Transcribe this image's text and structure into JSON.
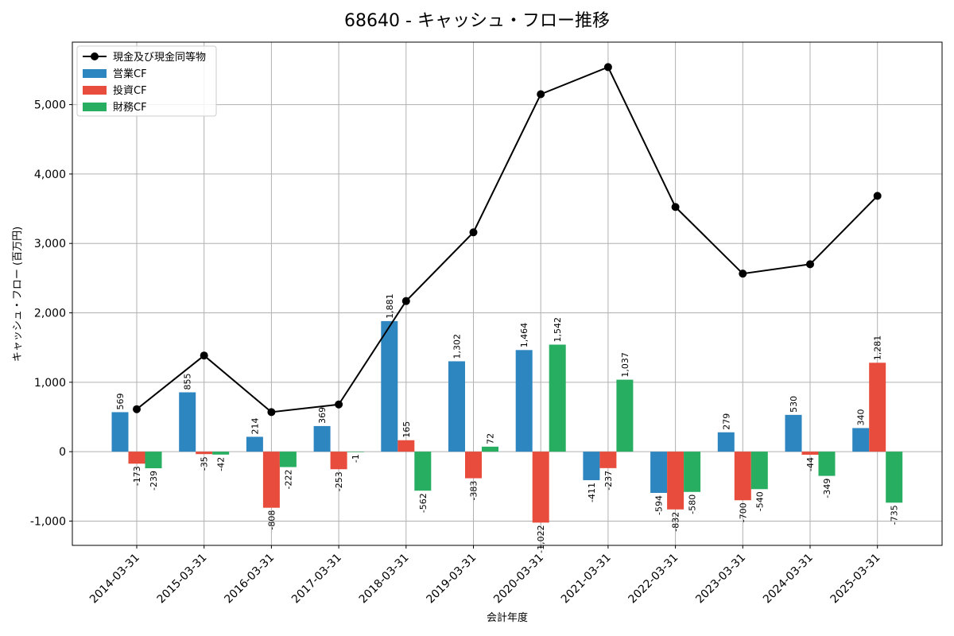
{
  "chart_data": {
    "type": "bar",
    "title": "68640 - キャッシュ・フロー推移",
    "xlabel": "会計年度",
    "ylabel": "キャッシュ・フロー (百万円)",
    "ylim": [
      -1350,
      5900
    ],
    "yticks": [
      -1000,
      0,
      1000,
      2000,
      3000,
      4000,
      5000
    ],
    "ytick_labels": [
      "-1,000",
      "0",
      "1,000",
      "2,000",
      "3,000",
      "4,000",
      "5,000"
    ],
    "grid": true,
    "legend_position": "top-left",
    "categories": [
      "2014-03-31",
      "2015-03-31",
      "2016-03-31",
      "2017-03-31",
      "2018-03-31",
      "2019-03-31",
      "2020-03-31",
      "2021-03-31",
      "2022-03-31",
      "2023-03-31",
      "2024-03-31",
      "2025-03-31"
    ],
    "series": [
      {
        "name": "営業CF",
        "kind": "bar",
        "color": "#2e86c1",
        "values": [
          569,
          855,
          214,
          369,
          1881,
          1302,
          1464,
          -411,
          -594,
          279,
          530,
          340
        ],
        "labels": [
          "569",
          "855",
          "214",
          "369",
          "1,881",
          "1,302",
          "1,464",
          "-411",
          "-594",
          "279",
          "530",
          "340"
        ]
      },
      {
        "name": "投資CF",
        "kind": "bar",
        "color": "#e74c3c",
        "values": [
          -173,
          -35,
          -808,
          -253,
          165,
          -383,
          -1022,
          -237,
          -832,
          -700,
          -44,
          1281
        ],
        "labels": [
          "-173",
          "-35",
          "-808",
          "-253",
          "165",
          "-383",
          "-1,022",
          "-237",
          "-832",
          "-700",
          "-44",
          "1,281"
        ]
      },
      {
        "name": "財務CF",
        "kind": "bar",
        "color": "#27ae60",
        "values": [
          -239,
          -42,
          -222,
          -1,
          -562,
          72,
          1542,
          1037,
          -580,
          -540,
          -349,
          -735
        ],
        "labels": [
          "-239",
          "-42",
          "-222",
          "-1",
          "-562",
          "72",
          "1,542",
          "1,037",
          "-580",
          "-540",
          "-349",
          "-735"
        ]
      },
      {
        "name": "現金及び現金同等物",
        "kind": "line",
        "color": "#000000",
        "values": [
          612,
          1385,
          570,
          680,
          2170,
          3160,
          5150,
          5540,
          3525,
          2565,
          2700,
          3685
        ]
      }
    ]
  }
}
